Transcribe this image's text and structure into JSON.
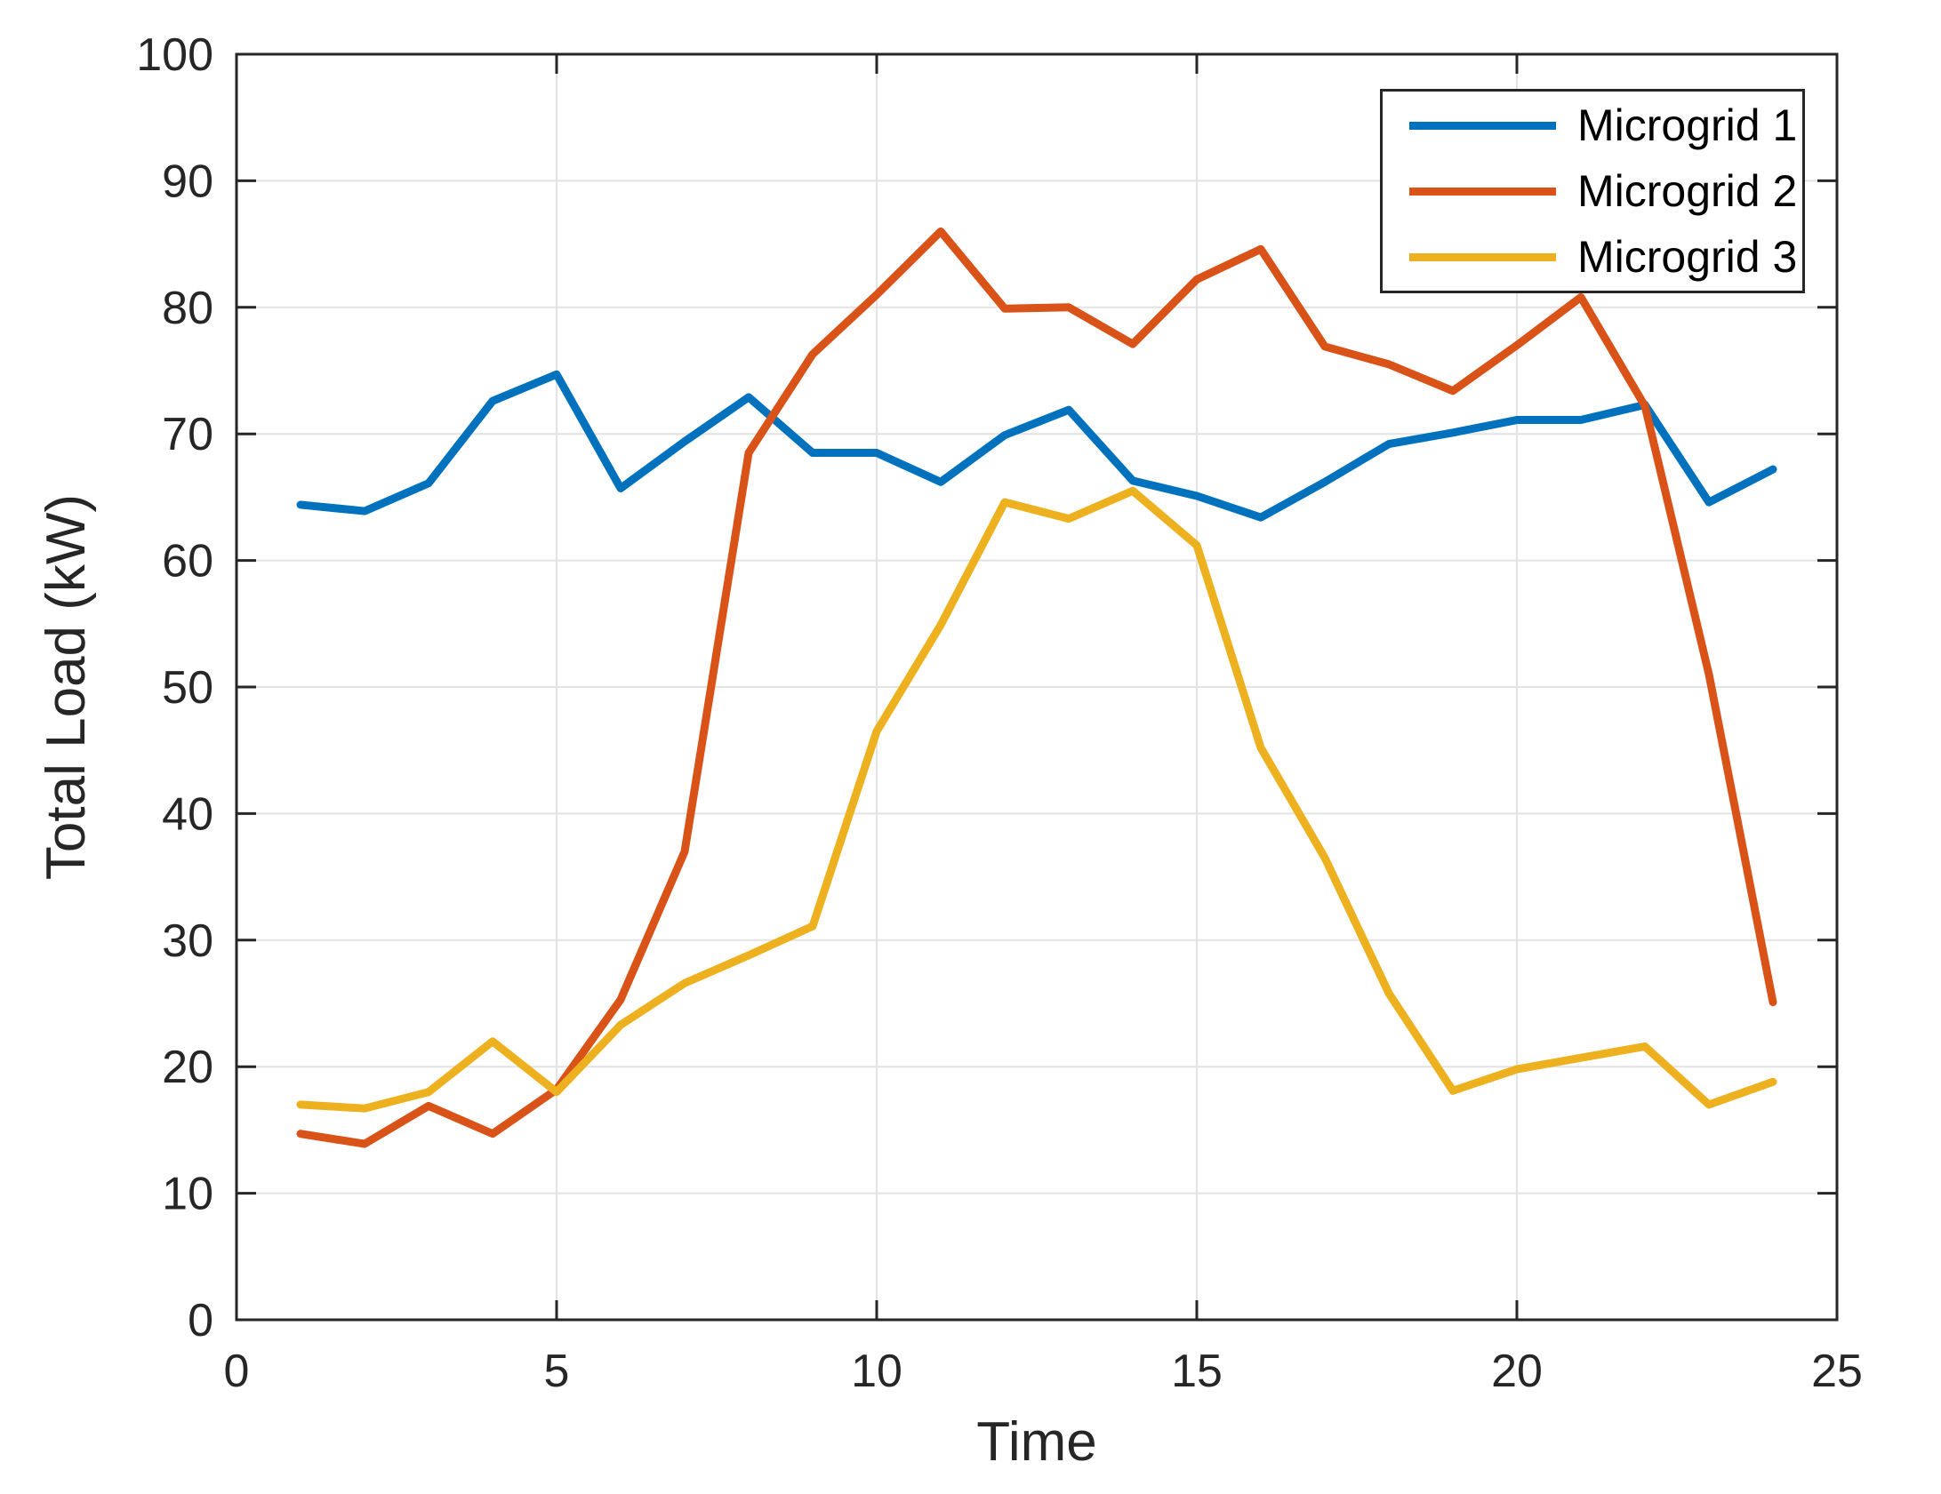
{
  "chart_data": {
    "type": "line",
    "title": "",
    "xlabel": "Time",
    "ylabel": "Total Load (kW)",
    "xlim": [
      0,
      25
    ],
    "ylim": [
      0,
      100
    ],
    "x_ticks": [
      0,
      5,
      10,
      15,
      20,
      25
    ],
    "y_ticks": [
      0,
      10,
      20,
      30,
      40,
      50,
      60,
      70,
      80,
      90,
      100
    ],
    "grid": true,
    "legend_position": "top-right",
    "x": [
      1,
      2,
      3,
      4,
      5,
      6,
      7,
      8,
      9,
      10,
      11,
      12,
      13,
      14,
      15,
      16,
      17,
      18,
      19,
      20,
      21,
      22,
      23,
      24
    ],
    "series": [
      {
        "name": "Microgrid 1",
        "color": "#0072BD",
        "values": [
          64.4,
          63.9,
          66.1,
          72.6,
          74.7,
          65.7,
          69.4,
          72.9,
          68.5,
          68.5,
          66.2,
          69.9,
          71.9,
          66.3,
          65.1,
          63.4,
          66.2,
          69.2,
          70.1,
          71.1,
          71.1,
          72.3,
          64.6,
          67.2
        ]
      },
      {
        "name": "Microgrid 2",
        "color": "#D95319",
        "values": [
          14.7,
          13.9,
          16.9,
          14.7,
          18.2,
          25.3,
          37.0,
          68.5,
          76.3,
          81.0,
          86.0,
          79.9,
          80.0,
          77.1,
          82.2,
          84.6,
          76.9,
          75.5,
          73.4,
          77.0,
          80.8,
          72.2,
          51.0,
          25.1
        ]
      },
      {
        "name": "Microgrid 3",
        "color": "#EDB120",
        "values": [
          17.0,
          16.7,
          18.0,
          22.0,
          18.0,
          23.3,
          26.6,
          28.8,
          31.1,
          46.5,
          54.9,
          64.6,
          63.3,
          65.5,
          61.2,
          45.2,
          36.5,
          25.8,
          18.1,
          19.8,
          20.7,
          21.6,
          17.0,
          18.8
        ]
      }
    ],
    "colors": {
      "axis": "#262626",
      "grid": "#e3e3e3",
      "background": "#ffffff"
    }
  }
}
